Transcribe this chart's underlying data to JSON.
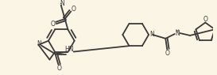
{
  "bg_color": "#faf5e4",
  "line_color": "#3a3a3a",
  "line_width": 1.3,
  "figsize": [
    2.73,
    0.95
  ],
  "dpi": 100,
  "xlim": [
    0,
    273
  ],
  "ylim": [
    0,
    95
  ]
}
